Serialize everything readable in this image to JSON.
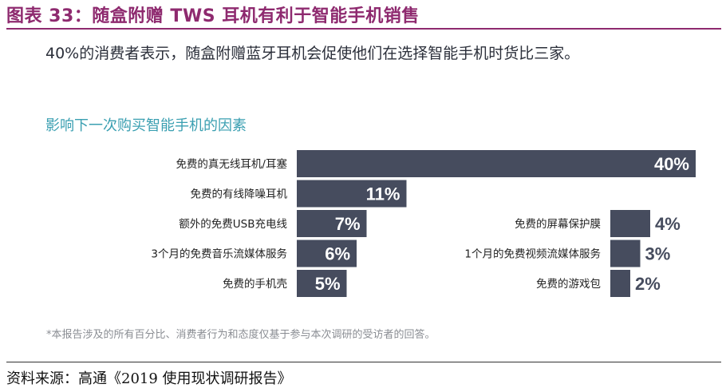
{
  "header": {
    "title": "图表 33：随盒附赠 TWS 耳机有利于智能手机销售"
  },
  "subtitle": "40%的消费者表示，随盒附赠蓝牙耳机会促使他们在选择智能手机时货比三家。",
  "chart_title": "影响下一次购买智能手机的因素",
  "footnote": "*本报告涉及的所有百分比、消费者行为和态度仅基于参与本次调研的受访者的回答。",
  "source": "资料来源：高通《2019 使用现状调研报告》",
  "colors": {
    "bar": "#464c5e",
    "accent": "#8e2a6f",
    "chart_title": "#3a9fb1"
  },
  "chart_data": {
    "type": "bar",
    "orientation": "horizontal",
    "title": "影响下一次购买智能手机的因素",
    "xlim": [
      0,
      40
    ],
    "panels": [
      {
        "categories": [
          "免费的真无线耳机/耳塞",
          "免费的有线降噪耳机",
          "额外的免费USB充电线",
          "3个月的免费音乐流媒体服务",
          "免费的手机壳"
        ],
        "values": [
          40,
          11,
          7,
          6,
          5
        ],
        "value_labels": [
          "40%",
          "11%",
          "7%",
          "6%",
          "5%"
        ]
      },
      {
        "categories": [
          "免费的屏幕保护膜",
          "1个月的免费视频流媒体服务",
          "免费的游戏包"
        ],
        "values": [
          4,
          3,
          2
        ],
        "value_labels": [
          "4%",
          "3%",
          "2%"
        ]
      }
    ]
  }
}
